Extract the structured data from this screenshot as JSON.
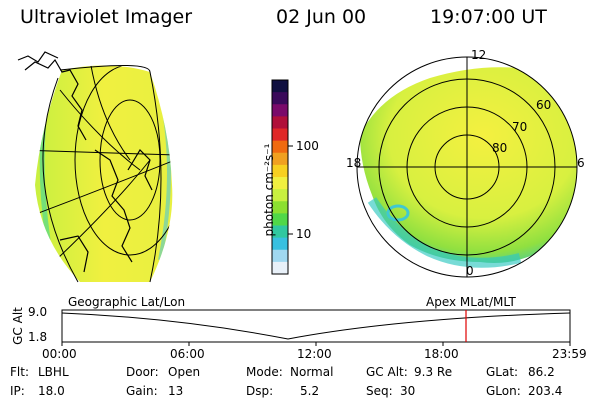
{
  "header": {
    "instrument": "Ultraviolet Imager",
    "date": "02 Jun 00",
    "time": "19:07:00 UT"
  },
  "colorbar": {
    "unit_label": "photon cm⁻²s⁻¹",
    "ticks": [
      "100",
      "10"
    ],
    "colors": [
      "#101040",
      "#3a0a5a",
      "#7a0a6a",
      "#b0103a",
      "#e02828",
      "#f06a10",
      "#f0a020",
      "#f7d020",
      "#f0f040",
      "#c8f040",
      "#8ce030",
      "#50d848",
      "#30c8a0",
      "#38c0e0",
      "#a0d8f0",
      "#e8f0f8"
    ]
  },
  "left_panel": {
    "label": "Geographic Lat/Lon"
  },
  "right_panel": {
    "label": "Apex MLat/MLT",
    "mlt_labels": [
      "12",
      "18",
      "6",
      "0"
    ],
    "mlat_labels": [
      "60",
      "70",
      "80"
    ]
  },
  "altitude_plot": {
    "ylabel": "GC Alt",
    "yticks": [
      "9.0",
      "1.8"
    ],
    "xticks": [
      "00:00",
      "06:00",
      "12:00",
      "18:00",
      "23:59"
    ],
    "marker_time": "19:07",
    "marker_color": "#e00000"
  },
  "info": {
    "flt_label": "Flt:",
    "flt_value": "LBHL",
    "ip_label": "IP:",
    "ip_value": "18.0",
    "door_label": "Door:",
    "door_value": "Open",
    "gain_label": "Gain:",
    "gain_value": "13",
    "mode_label": "Mode:",
    "mode_value": "Normal",
    "dsp_label": "Dsp:",
    "dsp_value": "5.2",
    "gcalt_label": "GC Alt:",
    "gcalt_value": "9.3 Re",
    "seq_label": "Seq:",
    "seq_value": "30",
    "glat_label": "GLat:",
    "glat_value": "86.2",
    "glon_label": "GLon:",
    "glon_value": "203.4"
  }
}
